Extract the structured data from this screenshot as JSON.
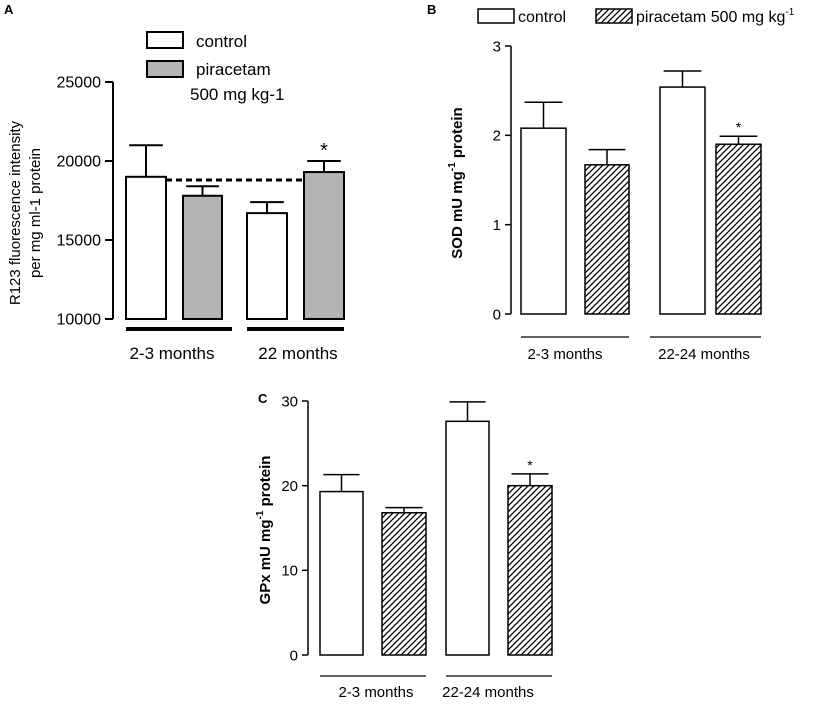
{
  "colors": {
    "control": "#ffffff",
    "gray": "#b3b3b3",
    "ink": "#000000"
  },
  "chart_data": [
    {
      "panel": "A",
      "type": "bar",
      "title": "",
      "ylabel_line1": "R123 fluorescence intensity",
      "ylabel_line2": "per mg ml-1 protein",
      "ylim": [
        10000,
        25000
      ],
      "yticks": [
        "10000",
        "15000",
        "20000",
        "25000"
      ],
      "ytick_values": [
        10000,
        15000,
        20000,
        25000
      ],
      "groups": [
        "2-3 months",
        "22 months"
      ],
      "legend": {
        "control": "control",
        "drug_line1": "piracetam",
        "drug_line2": "500 mg kg-1"
      },
      "series": [
        {
          "name": "control",
          "values": [
            19000,
            16700
          ],
          "errors": [
            2000,
            700
          ]
        },
        {
          "name": "piracetam 500 mg kg-1",
          "values": [
            17800,
            19300
          ],
          "errors": [
            600,
            700
          ]
        }
      ],
      "reference_line": 18800,
      "significance": [
        {
          "series": 1,
          "group": 1,
          "label": "*"
        }
      ]
    },
    {
      "panel": "B",
      "type": "bar",
      "title": "",
      "ylabel_main": "SOD mU mg",
      "ylabel_sup": "-1",
      "ylabel_tail": " protein",
      "ylim": [
        0,
        3
      ],
      "yticks": [
        "0",
        "1",
        "2",
        "3"
      ],
      "ytick_values": [
        0,
        1,
        2,
        3
      ],
      "groups": [
        "2-3 months",
        "22-24 months"
      ],
      "legend": {
        "control": "control",
        "drug": "piracetam 500 mg kg",
        "drug_sup": "-1"
      },
      "series": [
        {
          "name": "control",
          "values": [
            2.08,
            2.54
          ],
          "errors": [
            0.29,
            0.18
          ]
        },
        {
          "name": "piracetam 500 mg kg-1",
          "values": [
            1.67,
            1.9
          ],
          "errors": [
            0.17,
            0.09
          ]
        }
      ],
      "significance": [
        {
          "series": 1,
          "group": 1,
          "label": "*"
        }
      ]
    },
    {
      "panel": "C",
      "type": "bar",
      "title": "",
      "ylabel_main": "GPx mU mg",
      "ylabel_sup": "-1",
      "ylabel_tail": " protein",
      "ylim": [
        0,
        30
      ],
      "yticks": [
        "0",
        "10",
        "20",
        "30"
      ],
      "ytick_values": [
        0,
        10,
        20,
        30
      ],
      "groups": [
        "2-3 months",
        "22-24 months"
      ],
      "series": [
        {
          "name": "control",
          "values": [
            19.3,
            27.6
          ],
          "errors": [
            2.0,
            2.3
          ]
        },
        {
          "name": "piracetam 500 mg kg-1",
          "values": [
            16.8,
            20.0
          ],
          "errors": [
            0.6,
            1.4
          ]
        }
      ],
      "significance": [
        {
          "series": 1,
          "group": 1,
          "label": "*"
        }
      ]
    }
  ]
}
